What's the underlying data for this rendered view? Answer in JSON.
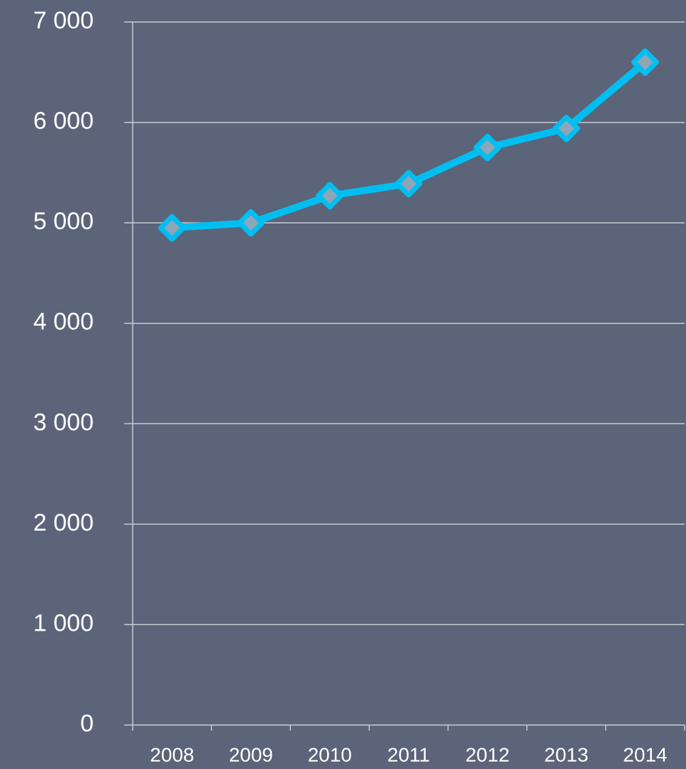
{
  "chart_data": {
    "type": "line",
    "categories": [
      "2008",
      "2009",
      "2010",
      "2011",
      "2012",
      "2013",
      "2014"
    ],
    "series": [
      {
        "color": "#00bff0",
        "values": [
          4950,
          5000,
          5270,
          5390,
          5750,
          5940,
          6600
        ]
      }
    ],
    "ylim": [
      0,
      7000
    ],
    "yticks": [
      0,
      {
        "value": 1000,
        "label": "1 000"
      },
      {
        "value": 2000,
        "label": "2 000"
      },
      {
        "value": 3000,
        "label": "3 000"
      },
      {
        "value": 4000,
        "label": "4 000"
      },
      {
        "value": 5000,
        "label": "5 000"
      },
      {
        "value": 6000,
        "label": "6 000"
      },
      {
        "value": 7000,
        "label": "7 000"
      }
    ],
    "grid": true
  }
}
